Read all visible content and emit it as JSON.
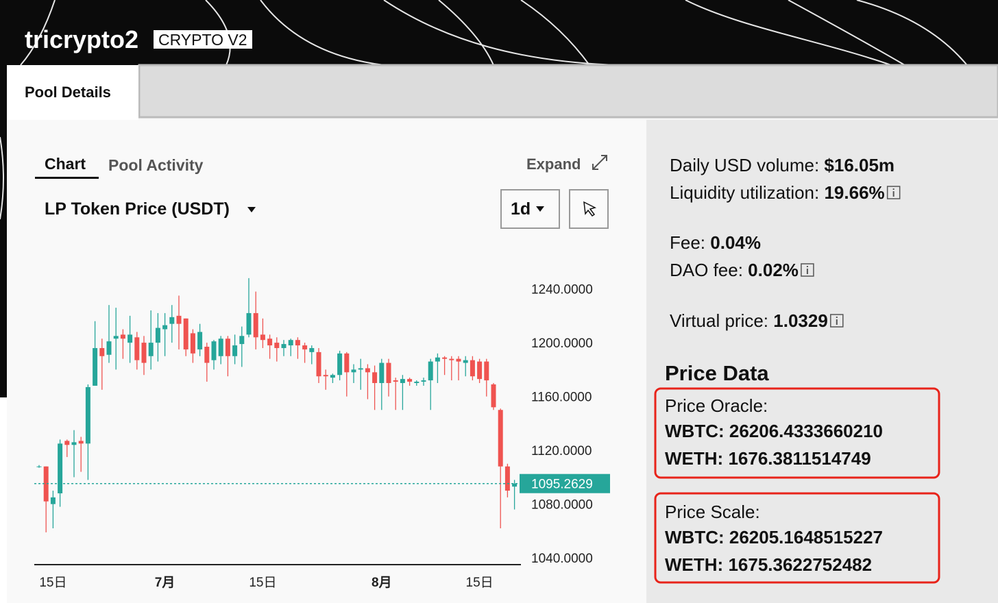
{
  "header": {
    "title": "tricrypto2",
    "badge": "CRYPTO V2"
  },
  "tabs": [
    "Pool Details"
  ],
  "chart_panel": {
    "tabs": [
      "Chart",
      "Pool Activity"
    ],
    "expand": "Expand",
    "selector": "LP Token Price (USDT)",
    "interval": "1d"
  },
  "chart_data": {
    "type": "candlestick",
    "categories": [
      null,
      null,
      "15日",
      null,
      null,
      null,
      null,
      null,
      null,
      null,
      null,
      null,
      null,
      null,
      null,
      null,
      null,
      null,
      "7月",
      null,
      null,
      null,
      null,
      null,
      null,
      null,
      null,
      null,
      null,
      null,
      null,
      null,
      "15日",
      null,
      null,
      null,
      null,
      null,
      null,
      null,
      null,
      null,
      null,
      null,
      null,
      null,
      null,
      null,
      null,
      "8月",
      null,
      null,
      null,
      null,
      null,
      null,
      null,
      null,
      null,
      null,
      null,
      null,
      null,
      "15日",
      null,
      null,
      null,
      null,
      null
    ],
    "open": [
      1108,
      1108,
      1080,
      1088,
      1127,
      1124,
      1127,
      1125,
      1168,
      1196,
      1191,
      1203,
      1206,
      1200,
      1204,
      1200,
      1190,
      1200,
      1210,
      1214,
      1220,
      1218,
      1207,
      1195,
      1197,
      1187,
      1190,
      1203,
      1190,
      1199,
      1206,
      1222,
      1206,
      1203,
      1200,
      1196,
      1198,
      1202,
      1198,
      1193,
      1193,
      1176,
      1174,
      1176,
      1192,
      1178,
      1180,
      1181,
      1178,
      1170,
      1185,
      1172,
      1170,
      1173,
      1170,
      1171,
      1172,
      1186,
      1189,
      1188,
      1188,
      1185,
      1187,
      1186,
      1186,
      1169,
      1150,
      1108,
      1093
    ],
    "high": [
      1109,
      1108,
      1090,
      1128,
      1128,
      1135,
      1130,
      1169,
      1216,
      1203,
      1228,
      1226,
      1210,
      1220,
      1208,
      1205,
      1224,
      1222,
      1222,
      1228,
      1235,
      1218,
      1210,
      1214,
      1200,
      1202,
      1205,
      1205,
      1206,
      1212,
      1248,
      1238,
      1218,
      1206,
      1204,
      1202,
      1203,
      1204,
      1200,
      1198,
      1196,
      1180,
      1177,
      1194,
      1193,
      1184,
      1188,
      1184,
      1183,
      1188,
      1188,
      1174,
      1176,
      1174,
      1172,
      1174,
      1188,
      1192,
      1190,
      1190,
      1190,
      1190,
      1190,
      1188,
      1188,
      1170,
      1151,
      1110,
      1098
    ],
    "low": [
      1107,
      1059,
      1062,
      1078,
      1115,
      1100,
      1104,
      1098,
      1168,
      1165,
      1185,
      1180,
      1188,
      1185,
      1180,
      1176,
      1180,
      1186,
      1190,
      1200,
      1195,
      1190,
      1185,
      1190,
      1171,
      1180,
      1184,
      1175,
      1184,
      1182,
      1204,
      1195,
      1196,
      1188,
      1186,
      1190,
      1190,
      1188,
      1185,
      1184,
      1170,
      1165,
      1170,
      1172,
      1160,
      1170,
      1165,
      1158,
      1150,
      1150,
      1160,
      1150,
      1150,
      1168,
      1168,
      1168,
      1150,
      1170,
      1176,
      1172,
      1172,
      1175,
      1172,
      1170,
      1160,
      1150,
      1062,
      1085,
      1076
    ],
    "close": [
      1108,
      1082,
      1085,
      1125,
      1124,
      1126,
      1125,
      1167,
      1196,
      1190,
      1201,
      1205,
      1203,
      1206,
      1187,
      1185,
      1200,
      1211,
      1213,
      1219,
      1214,
      1195,
      1192,
      1208,
      1185,
      1201,
      1203,
      1190,
      1198,
      1205,
      1222,
      1204,
      1202,
      1198,
      1196,
      1199,
      1202,
      1198,
      1195,
      1196,
      1175,
      1175,
      1176,
      1192,
      1178,
      1180,
      1181,
      1178,
      1170,
      1185,
      1170,
      1171,
      1173,
      1171,
      1171,
      1172,
      1186,
      1189,
      1188,
      1187,
      1186,
      1187,
      1175,
      1173,
      1172,
      1152,
      1108,
      1090,
      1095.2629
    ],
    "up_color": "#26a69a",
    "down_color": "#ef5350",
    "last_price": 1095.2629,
    "ylim": [
      1035,
      1251
    ],
    "yticks": [
      {
        "value": 1040,
        "label": "1040.0000"
      },
      {
        "value": 1080,
        "label": "1080.0000"
      },
      {
        "value": 1120,
        "label": "1120.0000"
      },
      {
        "value": 1160,
        "label": "1160.0000"
      },
      {
        "value": 1200,
        "label": "1200.0000"
      },
      {
        "value": 1240,
        "label": "1240.0000"
      }
    ]
  },
  "stats": [
    {
      "label": "Daily USD volume:",
      "value": "$16.05m"
    },
    {
      "label": "Liquidity utilization:",
      "value": "19.66%",
      "info": true
    },
    {
      "label": "Fee:",
      "value": "0.04%"
    },
    {
      "label": "DAO fee:",
      "value": "0.02%",
      "info": true
    },
    {
      "label": "Virtual price:",
      "value": "1.0329",
      "info": true
    }
  ],
  "price_data": {
    "title": "Price Data",
    "groups": [
      {
        "title": "Price Oracle:",
        "items": [
          {
            "label": "WBTC:",
            "value": "26206.4333660210"
          },
          {
            "label": "WETH:",
            "value": "1676.3811514749"
          }
        ]
      },
      {
        "title": "Price Scale:",
        "items": [
          {
            "label": "WBTC:",
            "value": "26205.1648515227"
          },
          {
            "label": "WETH:",
            "value": "1675.3622752482"
          }
        ]
      }
    ]
  }
}
